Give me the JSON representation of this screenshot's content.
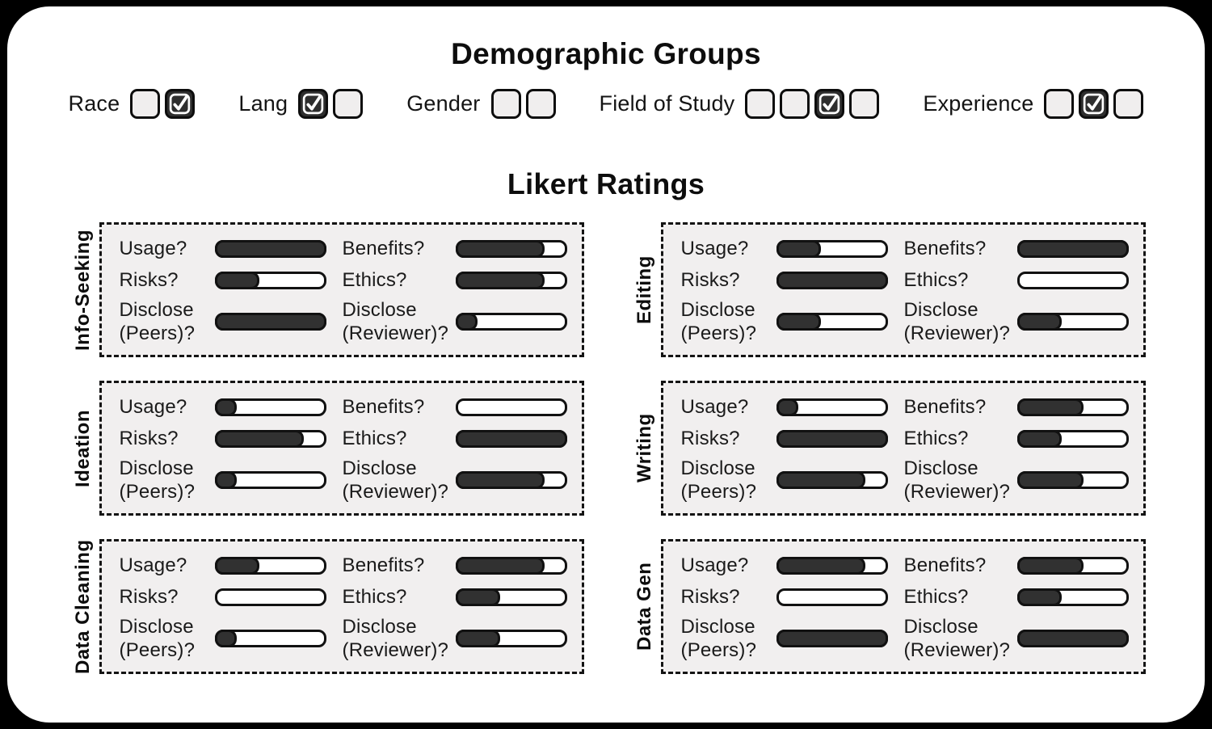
{
  "demographic": {
    "title": "Demographic Groups",
    "groups": [
      {
        "label": "Race",
        "boxes": [
          false,
          true
        ]
      },
      {
        "label": "Lang",
        "boxes": [
          true,
          false
        ]
      },
      {
        "label": "Gender",
        "boxes": [
          false,
          false
        ]
      },
      {
        "label": "Field of Study",
        "boxes": [
          false,
          false,
          true,
          false
        ]
      },
      {
        "label": "Experience",
        "boxes": [
          false,
          true,
          false
        ]
      }
    ]
  },
  "likert": {
    "title": "Likert Ratings"
  },
  "chart_data": {
    "type": "bar",
    "title": "Likert Ratings",
    "categories": [
      "Usage?",
      "Risks?",
      "Disclose (Peers)?",
      "Benefits?",
      "Ethics?",
      "Disclose (Reviewer)?"
    ],
    "series": [
      {
        "name": "Info-Seeking",
        "values": [
          1.0,
          0.4,
          1.0,
          0.8,
          0.8,
          0.2
        ]
      },
      {
        "name": "Ideation",
        "values": [
          0.2,
          0.8,
          0.2,
          0.0,
          1.0,
          0.8
        ]
      },
      {
        "name": "Data Cleaning",
        "values": [
          0.4,
          0.0,
          0.2,
          0.8,
          0.4,
          0.4
        ]
      },
      {
        "name": "Editing",
        "values": [
          0.4,
          1.0,
          0.4,
          1.0,
          0.0,
          0.4
        ]
      },
      {
        "name": "Writing",
        "values": [
          0.2,
          1.0,
          0.8,
          0.6,
          0.4,
          0.6
        ]
      },
      {
        "name": "Data Gen",
        "values": [
          0.8,
          0.0,
          1.0,
          0.6,
          0.4,
          1.0
        ]
      }
    ],
    "value_range": [
      0,
      1
    ],
    "value_meaning": "fraction of Likert bar filled",
    "layout": "2-column grid of 6 panels; left column top-to-bottom: Info-Seeking, Ideation, Data Cleaning; right column: Editing, Writing, Data Gen"
  },
  "colors": {
    "page_bg": "#000000",
    "card_bg": "#ffffff",
    "panel_bg": "#f1efef",
    "bar_fill": "#313131",
    "bar_border": "#111111",
    "checkbox_checked_bg": "#2e2e2e",
    "checkbox_unchecked_bg": "#f0eeee"
  }
}
